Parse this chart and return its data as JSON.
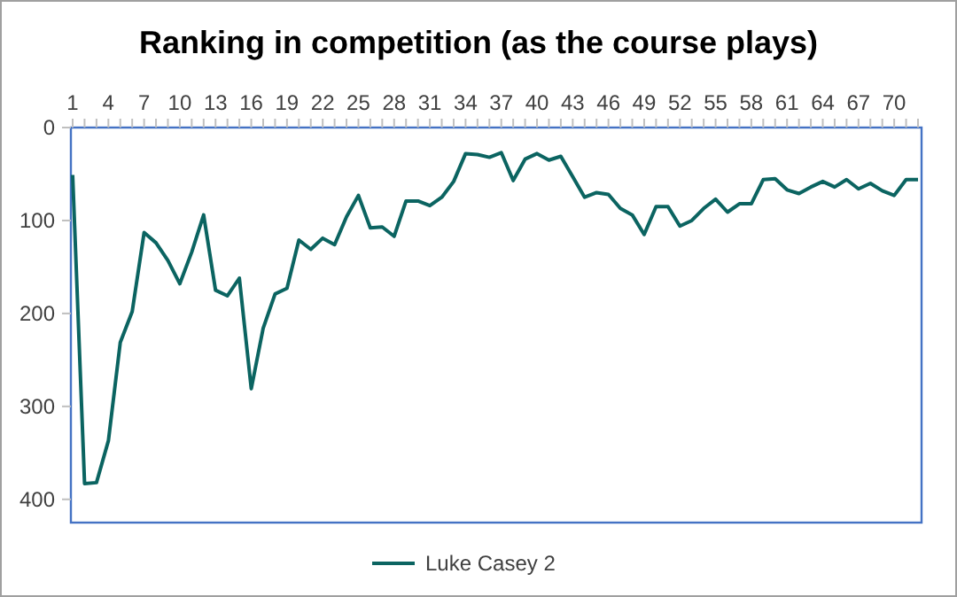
{
  "chart_data": {
    "type": "line",
    "title": "Ranking in competition (as the course plays)",
    "categories": [
      "1",
      null,
      null,
      "4",
      null,
      null,
      "7",
      null,
      null,
      "10",
      null,
      null,
      "13",
      null,
      null,
      "16",
      null,
      null,
      "19",
      null,
      null,
      "22",
      null,
      null,
      "25",
      null,
      null,
      "28",
      null,
      null,
      "31",
      null,
      null,
      "34",
      null,
      null,
      "37",
      null,
      null,
      "40",
      null,
      null,
      "43",
      null,
      null,
      "46",
      null,
      null,
      "49",
      null,
      null,
      "52",
      null,
      null,
      "55",
      null,
      null,
      "58",
      null,
      null,
      "61",
      null,
      null,
      "64",
      null,
      null,
      "67",
      null,
      null,
      "70",
      null,
      null
    ],
    "series": [
      {
        "name": "Luke Casey 2",
        "color": "#0b6461",
        "values": [
          51,
          383,
          382,
          337,
          231,
          198,
          113,
          124,
          143,
          168,
          134,
          94,
          175,
          181,
          162,
          281,
          216,
          179,
          173,
          121,
          131,
          119,
          126,
          96,
          73,
          108,
          107,
          117,
          79,
          79,
          84,
          75,
          58,
          28,
          29,
          32,
          27,
          57,
          34,
          28,
          35,
          31,
          53,
          75,
          70,
          72,
          87,
          94,
          115,
          85,
          85,
          106,
          100,
          87,
          77,
          91,
          82,
          82,
          56,
          55,
          67,
          71,
          64,
          58,
          64,
          56,
          66,
          60,
          68,
          73,
          56,
          56
        ]
      }
    ],
    "ylim": [
      425,
      0
    ],
    "yticks": [
      0,
      100,
      200,
      300,
      400
    ],
    "legend": "bottom",
    "grid": false,
    "marker": "none",
    "line_style": "solid"
  }
}
